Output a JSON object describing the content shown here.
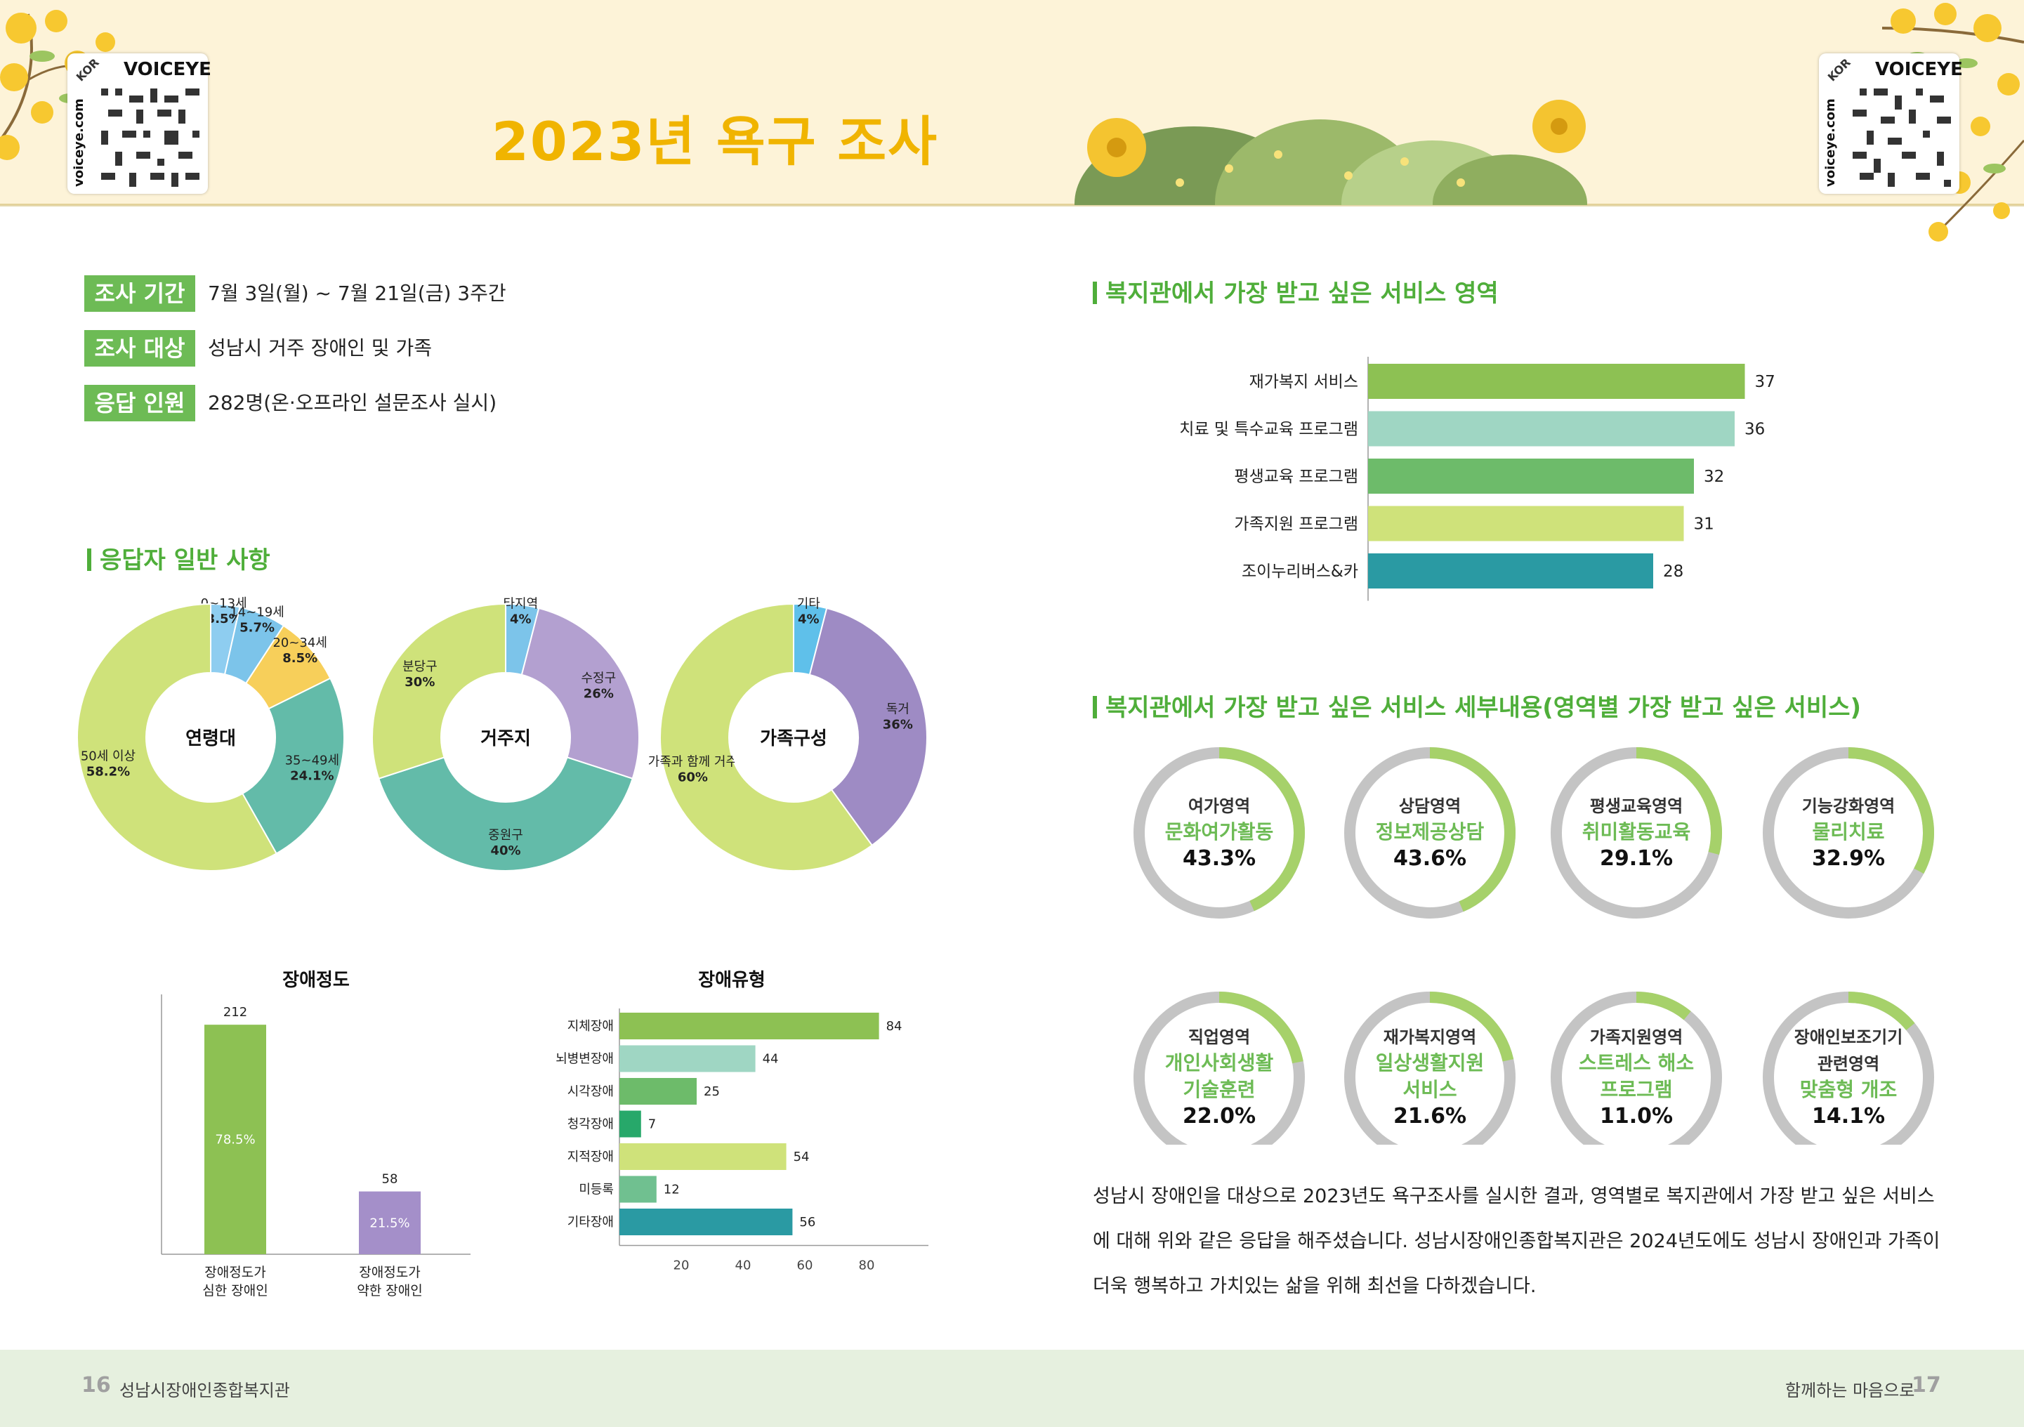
{
  "header": {
    "title": "2023년 욕구 조사",
    "qr_left": {
      "brand": "VOICEYE",
      "badge": "KOR",
      "site": "voiceye.com"
    },
    "qr_right": {
      "brand": "VOICEYE",
      "badge": "KOR",
      "site": "voiceye.com"
    }
  },
  "survey_info": [
    {
      "label": "조사 기간",
      "value": "7월 3일(월) ~ 7월 21일(금) 3주간"
    },
    {
      "label": "조사 대상",
      "value": "성남시 거주 장애인 및 가족"
    },
    {
      "label": "응답 인원",
      "value": "282명(온·오프라인 설문조사 실시)"
    }
  ],
  "respondents_heading": "응답자 일반 사항",
  "donuts": [
    {
      "center": "연령대",
      "slices": [
        {
          "name": "0~13세",
          "pct_label": "3.5%",
          "value": 3.5,
          "color": "#8ecdf0"
        },
        {
          "name": "14~19세",
          "pct_label": "5.7%",
          "value": 5.7,
          "color": "#7cc4ea"
        },
        {
          "name": "20~34세",
          "pct_label": "8.5%",
          "value": 8.5,
          "color": "#f7cf5a"
        },
        {
          "name": "35~49세",
          "pct_label": "24.1%",
          "value": 24.1,
          "color": "#63bba9"
        },
        {
          "name": "50세 이상",
          "pct_label": "58.2%",
          "value": 58.2,
          "color": "#cfe27a"
        }
      ]
    },
    {
      "center": "거주지",
      "slices": [
        {
          "name": "타지역",
          "pct_label": "4%",
          "value": 4,
          "color": "#7cc4ea"
        },
        {
          "name": "수정구",
          "pct_label": "26%",
          "value": 26,
          "color": "#b3a0d0"
        },
        {
          "name": "중원구",
          "pct_label": "40%",
          "value": 40,
          "color": "#63bba9"
        },
        {
          "name": "분당구",
          "pct_label": "30%",
          "value": 30,
          "color": "#cfe27a"
        }
      ]
    },
    {
      "center": "가족구성",
      "slices": [
        {
          "name": "기타",
          "pct_label": "4%",
          "value": 4,
          "color": "#5fc0ea"
        },
        {
          "name": "독거",
          "pct_label": "36%",
          "value": 36,
          "color": "#9e8bc4"
        },
        {
          "name": "가족과 함께 거주",
          "pct_label": "60%",
          "value": 60,
          "color": "#cfe27a"
        }
      ]
    }
  ],
  "chart_data": [
    {
      "type": "bar",
      "orientation": "vertical",
      "title": "장애정도",
      "categories": [
        "장애정도가 심한 장애인",
        "장애정도가 약한 장애인"
      ],
      "category_lines": [
        [
          "장애정도가",
          "심한 장애인"
        ],
        [
          "장애정도가",
          "약한 장애인"
        ]
      ],
      "values": [
        212,
        58
      ],
      "data_labels": [
        "212",
        "58"
      ],
      "inner_labels": [
        "78.5%",
        "21.5%"
      ],
      "colors": [
        "#8dc153",
        "#a48fc9"
      ],
      "ylim": [
        0,
        240
      ]
    },
    {
      "type": "bar",
      "orientation": "horizontal",
      "title": "장애유형",
      "categories": [
        "지체장애",
        "뇌병변장애",
        "시각장애",
        "청각장애",
        "지적장애",
        "미등록",
        "기타장애"
      ],
      "values": [
        84,
        44,
        25,
        7,
        54,
        12,
        56
      ],
      "colors": [
        "#8dc153",
        "#9fd6c3",
        "#6dbb6a",
        "#27a86a",
        "#cfe27a",
        "#70c090",
        "#2a9aa3"
      ],
      "xticks": [
        20,
        40,
        60,
        80
      ],
      "xlim": [
        0,
        100
      ]
    },
    {
      "type": "bar",
      "orientation": "horizontal",
      "title": "복지관에서 가장 받고 싶은 서비스 영역",
      "categories": [
        "재가복지 서비스",
        "치료 및 특수교육 프로그램",
        "평생교육 프로그램",
        "가족지원 프로그램",
        "조이누리버스&카"
      ],
      "values": [
        37,
        36,
        32,
        31,
        28
      ],
      "colors": [
        "#8dc153",
        "#9fd6c3",
        "#6dbb6a",
        "#cfe27a",
        "#2a9aa3"
      ],
      "xlim": [
        0,
        40
      ]
    }
  ],
  "service_detail_heading": "복지관에서 가장 받고 싶은 서비스 세부내용(영역별 가장 받고 싶은 서비스)",
  "rings": [
    {
      "lines": [
        "여가영역"
      ],
      "sub": [
        "문화여가활동"
      ],
      "pct": "43.3%",
      "value": 43.3
    },
    {
      "lines": [
        "상담영역"
      ],
      "sub": [
        "정보제공상담"
      ],
      "pct": "43.6%",
      "value": 43.6
    },
    {
      "lines": [
        "평생교육영역"
      ],
      "sub": [
        "취미활동교육"
      ],
      "pct": "29.1%",
      "value": 29.1
    },
    {
      "lines": [
        "기능강화영역"
      ],
      "sub": [
        "물리치료"
      ],
      "pct": "32.9%",
      "value": 32.9
    },
    {
      "lines": [
        "직업영역"
      ],
      "sub": [
        "개인사회생활",
        "기술훈련"
      ],
      "pct": "22.0%",
      "value": 22.0
    },
    {
      "lines": [
        "재가복지영역"
      ],
      "sub": [
        "일상생활지원",
        "서비스"
      ],
      "pct": "21.6%",
      "value": 21.6
    },
    {
      "lines": [
        "가족지원영역"
      ],
      "sub": [
        "스트레스 해소",
        "프로그램"
      ],
      "pct": "11.0%",
      "value": 11.0
    },
    {
      "lines": [
        "장애인보조기기",
        "관련영역"
      ],
      "sub": [
        "맞춤형 개조"
      ],
      "pct": "14.1%",
      "value": 14.1
    }
  ],
  "summary_lines": [
    "성남시 장애인을 대상으로 2023년도 욕구조사를 실시한 결과, 영역별로 복지관에서 가장 받고 싶은 서비스",
    "에 대해 위와 같은 응답을 해주셨습니다. 성남시장애인종합복지관은 2024년도에도 성남시 장애인과 가족이",
    "더욱 행복하고 가치있는 삶을 위해 최선을 다하겠습니다."
  ],
  "footer": {
    "left_page": "16",
    "left_text": "성남시장애인종합복지관",
    "right_text": "함께하는 마음으로",
    "right_page": "17"
  },
  "colors": {
    "accent_green": "#6dbb55",
    "title_yellow": "#f0b400",
    "ring_grey": "#c4c4c4",
    "ring_green": "#a6d16a"
  }
}
